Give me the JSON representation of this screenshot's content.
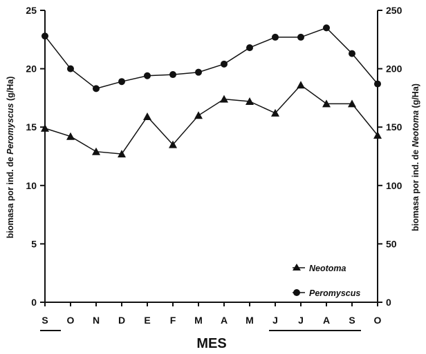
{
  "chart_data": {
    "type": "line",
    "xlabel": "MES",
    "ylabel_left_prefix": "biomasa por ind. de ",
    "ylabel_left_taxon": "Peromyscus",
    "ylabel_left_unit": " (g/Ha)",
    "ylabel_right_prefix": "biomasa por ind. de ",
    "ylabel_right_taxon": "Neotoma",
    "ylabel_right_unit": " (g/Ha)",
    "categories": [
      "S",
      "O",
      "N",
      "D",
      "E",
      "F",
      "M",
      "A",
      "M",
      "J",
      "J",
      "A",
      "S",
      "O"
    ],
    "ylim_left": [
      0,
      25
    ],
    "yticks_left": [
      "0",
      "5",
      "10",
      "15",
      "20",
      "25"
    ],
    "ylim_right": [
      0,
      250
    ],
    "yticks_right": [
      "0",
      "50",
      "100",
      "150",
      "200",
      "250"
    ],
    "series": [
      {
        "name": "Neotoma",
        "axis": "right",
        "marker": "triangle",
        "values": [
          149,
          142,
          129,
          127,
          159,
          135,
          160,
          174,
          172,
          162,
          186,
          170,
          170,
          143
        ]
      },
      {
        "name": "Peromyscus",
        "axis": "left",
        "marker": "circle",
        "values": [
          22.8,
          20.0,
          18.3,
          18.9,
          19.4,
          19.5,
          19.7,
          20.4,
          21.8,
          22.7,
          22.7,
          23.5,
          21.3,
          18.7
        ]
      }
    ],
    "legend_position": "bottom-right",
    "grid": false
  }
}
